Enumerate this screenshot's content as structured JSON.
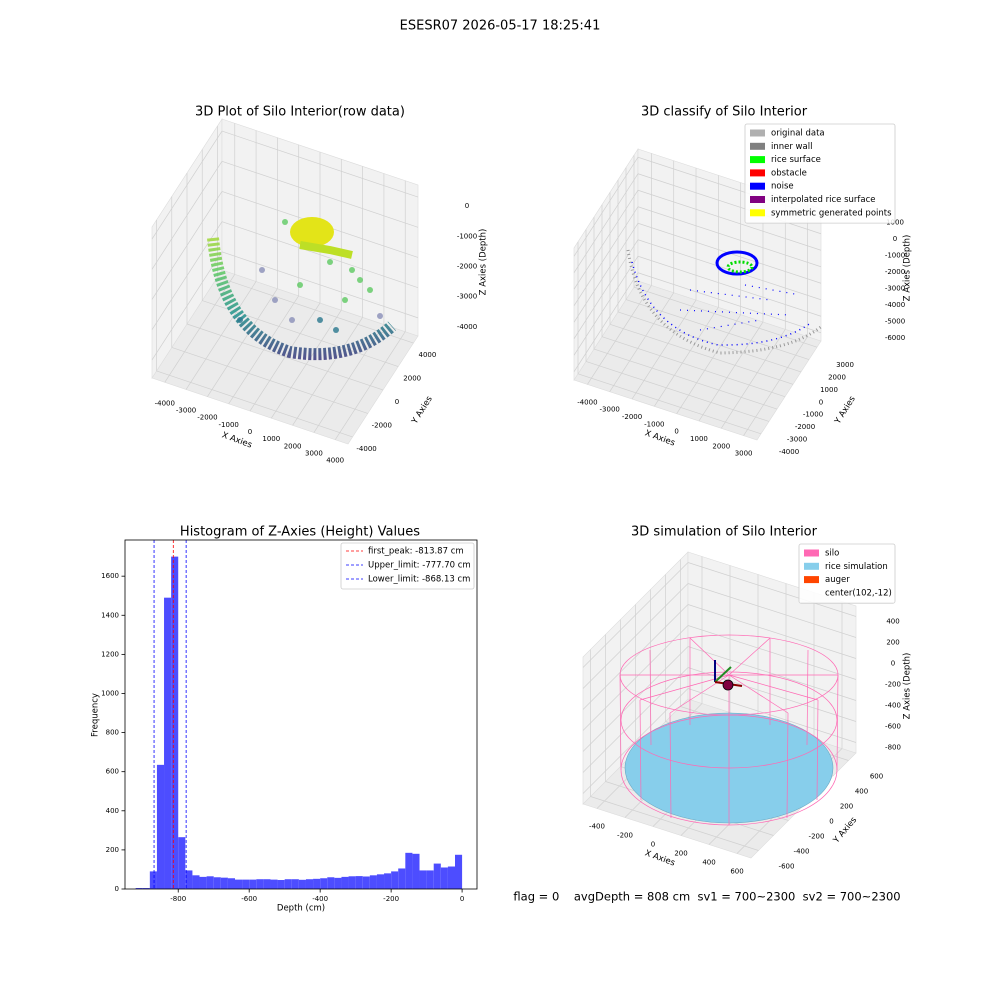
{
  "title": "ESESR07 2026-05-17 18:25:41",
  "chart_data": [
    {
      "type": "scatter3d",
      "title": "3D Plot of Silo Interior(row data)",
      "x_label": "X Axies",
      "y_label": "Y Axies",
      "z_label": "Z Axies (Depth)",
      "xlim": [
        -4600,
        4600
      ],
      "ylim": [
        -4600,
        4600
      ],
      "zlim": [
        -4600,
        400
      ],
      "xticks": [
        -4000,
        -3000,
        -2000,
        -1000,
        0,
        1000,
        2000,
        3000,
        4000
      ],
      "yticks": [
        -4000,
        -2000,
        0,
        2000,
        4000
      ],
      "zticks": [
        0,
        -1000,
        -2000,
        -3000,
        -4000
      ]
    },
    {
      "type": "scatter3d",
      "title": "3D classify of Silo Interior",
      "x_label": "X Axies",
      "y_label": "Y Axies",
      "z_label": "Z Axies (Depth)",
      "xlim": [
        -4600,
        3600
      ],
      "ylim": [
        -4500,
        3500
      ],
      "zlim": [
        -6500,
        1500
      ],
      "xticks": [
        -4000,
        -3000,
        -2000,
        -1000,
        0,
        1000,
        2000,
        3000
      ],
      "yticks": [
        -4000,
        -3000,
        -2000,
        -1000,
        0,
        1000,
        2000,
        3000
      ],
      "zticks": [
        1000,
        0,
        -1000,
        -2000,
        -3000,
        -4000,
        -5000,
        -6000
      ],
      "legend": [
        {
          "label": "original data",
          "color": "#b0b0b0"
        },
        {
          "label": "inner wall",
          "color": "#808080"
        },
        {
          "label": "rice surface",
          "color": "#00ff00"
        },
        {
          "label": "obstacle",
          "color": "#ff0000"
        },
        {
          "label": "noise",
          "color": "#0000ff"
        },
        {
          "label": "interpolated rice surface",
          "color": "#800080"
        },
        {
          "label": "symmetric generated points",
          "color": "#ffff00"
        }
      ]
    },
    {
      "type": "histogram",
      "title": "Histogram of Z-Axies (Height) Values",
      "x_label": "Depth (cm)",
      "y_label": "Frequency",
      "color": "#4d4dff",
      "bins": [
        -920,
        -900,
        -880,
        -860,
        -840,
        -820,
        -800,
        -780,
        -760,
        -740,
        -720,
        -700,
        -680,
        -660,
        -640,
        -620,
        -600,
        -580,
        -560,
        -540,
        -520,
        -500,
        -480,
        -460,
        -440,
        -420,
        -400,
        -380,
        -360,
        -340,
        -320,
        -300,
        -280,
        -260,
        -240,
        -220,
        -200,
        -180,
        -160,
        -140,
        -120,
        -100,
        -80,
        -60,
        -40,
        -20,
        0
      ],
      "counts": [
        5,
        5,
        90,
        635,
        1490,
        1700,
        265,
        95,
        70,
        62,
        65,
        60,
        58,
        55,
        48,
        48,
        48,
        50,
        50,
        48,
        46,
        50,
        50,
        47,
        50,
        52,
        55,
        60,
        57,
        62,
        65,
        66,
        64,
        70,
        75,
        80,
        90,
        105,
        185,
        180,
        95,
        95,
        130,
        110,
        115,
        175
      ],
      "xlim": [
        -950,
        42
      ],
      "ylim": [
        0,
        1785
      ],
      "xticks": [
        -800,
        -600,
        -400,
        -200,
        0
      ],
      "yticks": [
        0,
        200,
        400,
        600,
        800,
        1000,
        1200,
        1400,
        1600
      ],
      "vlines": [
        {
          "label": "first_peak: -813.87 cm",
          "value": -813.87,
          "color": "#ff0000"
        },
        {
          "label": "Upper_limit: -777.70 cm",
          "value": -777.7,
          "color": "#0000ff"
        },
        {
          "label": "Lower_limit: -868.13 cm",
          "value": -868.13,
          "color": "#0000ff"
        }
      ]
    },
    {
      "type": "surface3d",
      "title": "3D simulation of Silo Interior",
      "x_label": "X Axies",
      "y_label": "Y Axies",
      "z_label": "Z Axies (Depth)",
      "xlim": [
        -500,
        700
      ],
      "ylim": [
        -700,
        700
      ],
      "zlim": [
        -900,
        500
      ],
      "xticks": [
        -400,
        -200,
        0,
        200,
        400,
        600
      ],
      "yticks": [
        -600,
        -400,
        -200,
        0,
        200,
        400,
        600
      ],
      "zticks": [
        400,
        200,
        0,
        -200,
        -400,
        -600,
        -800
      ],
      "legend": [
        {
          "label": "silo",
          "color": "#ff69b4"
        },
        {
          "label": "rice simulation",
          "color": "#87ceeb"
        },
        {
          "label": "auger",
          "color": "#ff4500"
        },
        {
          "label": "center(102,-12)"
        }
      ]
    }
  ],
  "footer": "flag = 0    avgDepth = 808 cm  sv1 = 700~2300  sv2 = 700~2300"
}
